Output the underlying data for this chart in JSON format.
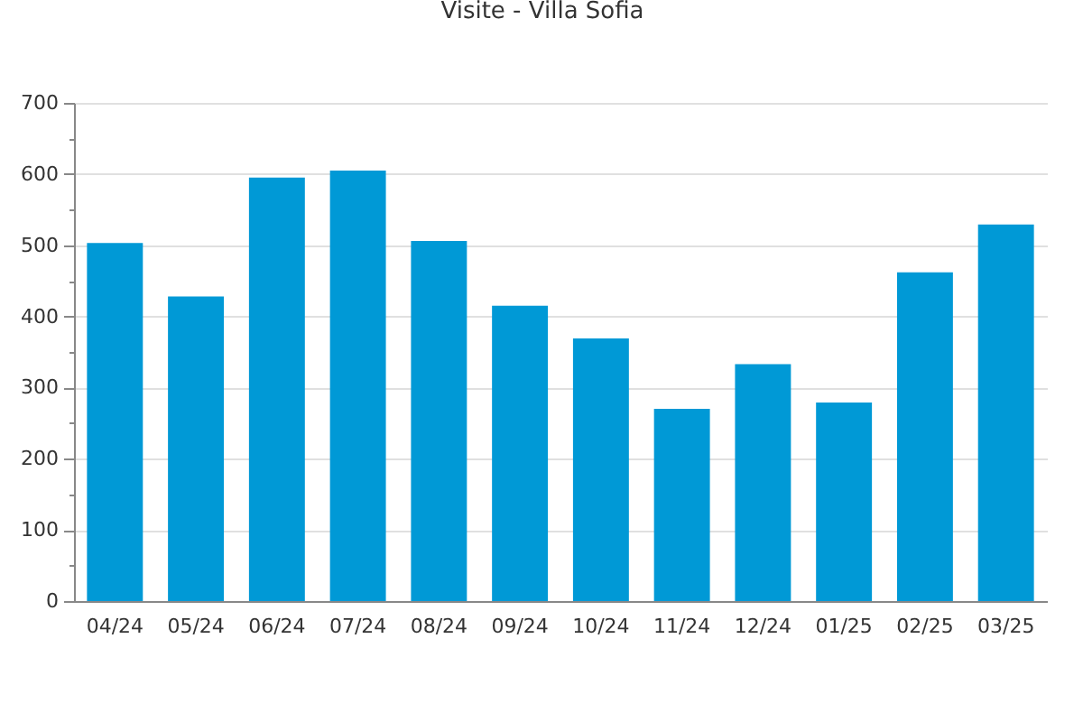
{
  "chart_data": {
    "type": "bar",
    "title": "Visite - Villa Sofia",
    "categories": [
      "04/24",
      "05/24",
      "06/24",
      "07/24",
      "08/24",
      "09/24",
      "10/24",
      "11/24",
      "12/24",
      "01/25",
      "02/25",
      "03/25"
    ],
    "values": [
      503,
      428,
      595,
      605,
      506,
      415,
      369,
      270,
      333,
      279,
      462,
      529
    ],
    "color": "#0099d6",
    "ylim": [
      0,
      700
    ],
    "yticks": [
      0,
      {
        "value": 50,
        "label": null
      },
      100,
      {
        "value": 150,
        "label": null
      },
      200,
      {
        "value": 250,
        "label": null
      },
      300,
      {
        "value": 350,
        "label": null
      },
      400,
      {
        "value": 450,
        "label": null
      },
      500,
      {
        "value": 550,
        "label": null
      },
      600,
      {
        "value": 650,
        "label": null
      },
      700
    ],
    "grid": "y"
  }
}
